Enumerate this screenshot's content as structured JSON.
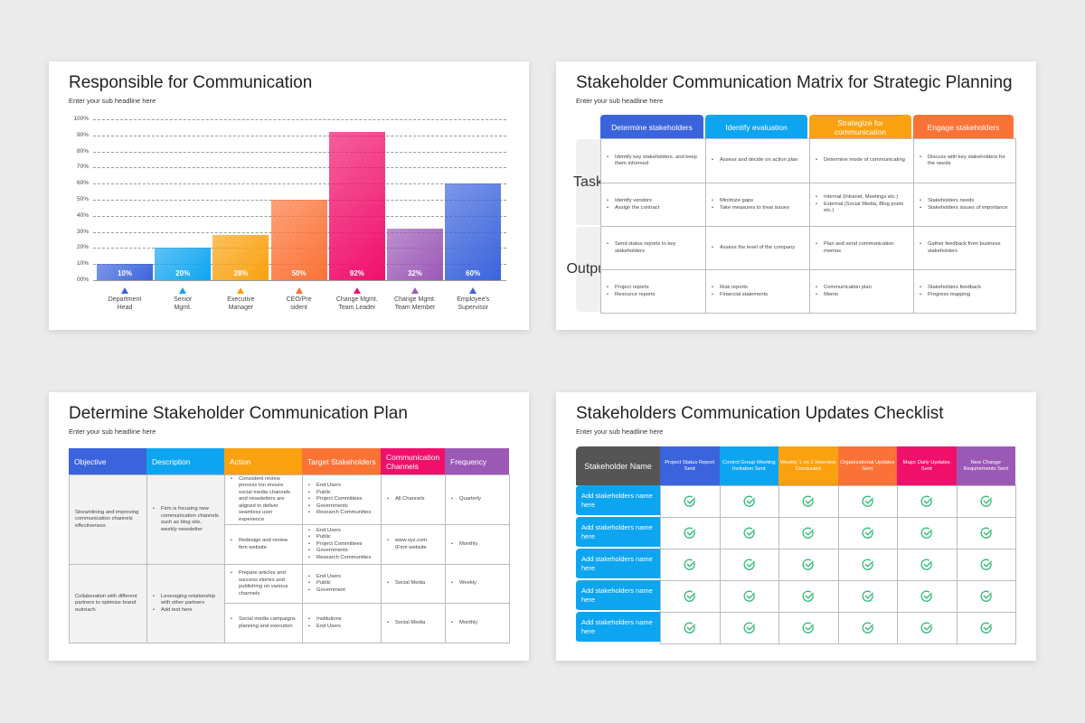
{
  "slide1": {
    "title": "Responsible for Communication",
    "subtitle": "Enter your sub headline here"
  },
  "slide2": {
    "title": "Stakeholder Communication Matrix for Strategic Planning",
    "subtitle": "Enter your sub headline here",
    "columns": [
      {
        "label": "Determine stakeholders",
        "color": "#3b64dc"
      },
      {
        "label": "Identify evaluation",
        "color": "#0ea5f0"
      },
      {
        "label": "Strategize for communication",
        "color": "#f9a10f"
      },
      {
        "label": "Engage stakeholders",
        "color": "#fb7236"
      }
    ],
    "row_groups": [
      "Task",
      "Output"
    ],
    "rows": [
      [
        [
          "Identify key stakeholders. and keep them informed"
        ],
        [
          "Assess and decide on action plan"
        ],
        [
          "Determine mode of communicating"
        ],
        [
          "Discuss with key stakeholders for the needs"
        ]
      ],
      [
        [
          "Identify vendors",
          "Assign the contract"
        ],
        [
          "Minimize gaps",
          "Take measures to treat issues"
        ],
        [
          "Internal (Intranet, Meetings etc.)",
          "External (Social Media, Blog posts etc.)"
        ],
        [
          "Stakeholders needs",
          "Stakeholders issues of importance"
        ]
      ],
      [
        [
          "Send status reports to key stakeholders"
        ],
        [
          "Assess the level of the company"
        ],
        [
          "Plan and send communication memos"
        ],
        [
          "Gather feedback from business stakeholders"
        ]
      ],
      [
        [
          "Project reports",
          "Resource reports"
        ],
        [
          "Risk reports",
          "Financial statements"
        ],
        [
          "Communication plan",
          "Memo"
        ],
        [
          "Stakeholders feedback",
          "Progress mapping"
        ]
      ]
    ]
  },
  "slide3": {
    "title": "Determine Stakeholder Communication Plan",
    "subtitle": "Enter your sub headline here",
    "columns": [
      {
        "label": "Objective",
        "color": "#3b64dc"
      },
      {
        "label": "Description",
        "color": "#0ea5f0"
      },
      {
        "label": "Action",
        "color": "#f9a10f"
      },
      {
        "label": "Target Stakeholders",
        "color": "#fb7236"
      },
      {
        "label": "Communication Channels",
        "color": "#f0106b"
      },
      {
        "label": "Frequency",
        "color": "#9b59b6"
      }
    ],
    "objectives": [
      {
        "objective": "Streamlining and improving communication channels effectiveness",
        "description": [
          "Firm is focusing new communication channels such as blog site, weekly newsletter"
        ]
      },
      {
        "objective": "Collaboration with different partners to optimize brand outreach",
        "description": [
          "Leveraging relationship with other partners",
          "Add text here"
        ]
      }
    ],
    "rows": [
      {
        "action": [
          "Consistent review process ton ensure social media channels and newsletters are aligned to deliver seamless user experience"
        ],
        "targets": [
          "End Users",
          "Public",
          "Project Committees",
          "Governments",
          "Research Communities"
        ],
        "channels": [
          "All Channels"
        ],
        "frequency": [
          "Quarterly"
        ]
      },
      {
        "action": [
          "Redesign and review firm website"
        ],
        "targets": [
          "End Users",
          "Public",
          "Project Committees",
          "Governments",
          "Research Communities"
        ],
        "channels": [
          "www.xyz.com (Firm website"
        ],
        "frequency": [
          "Monthly"
        ]
      },
      {
        "action": [
          "Prepare articles and success stories and publishing on various channels"
        ],
        "targets": [
          "End Users",
          "Public",
          "Government"
        ],
        "channels": [
          "Social Media"
        ],
        "frequency": [
          "Weekly"
        ]
      },
      {
        "action": [
          "Social media campaigns planning and execution"
        ],
        "targets": [
          "Institutions",
          "End Users"
        ],
        "channels": [
          "Social Media"
        ],
        "frequency": [
          "Monthly"
        ]
      }
    ]
  },
  "slide4": {
    "title": "Stakeholders Communication Updates Checklist",
    "subtitle": "Enter your sub headline here",
    "name_header": "Stakeholder Name",
    "columns": [
      {
        "label": "Project Status Report Sent",
        "color": "#3b64dc"
      },
      {
        "label": "Control Group Meeting Invitation Sent",
        "color": "#0ea5f0"
      },
      {
        "label": "Weekly 1 on 1 Interview Conducted",
        "color": "#f9a10f"
      },
      {
        "label": "Organizational Updates Sent",
        "color": "#fb7236"
      },
      {
        "label": "Major Daily Updates Sent",
        "color": "#f0106b"
      },
      {
        "label": "New Change Requirements Sent",
        "color": "#9b59b6"
      }
    ],
    "rows": [
      "Add stakeholders name here",
      "Add stakeholders name here",
      "Add stakeholders name here",
      "Add stakeholders name here",
      "Add stakeholders name here"
    ],
    "check_icon": "check-circle-icon",
    "check_color": "#2eb872"
  },
  "chart_data": {
    "type": "bar",
    "title": "Responsible for Communication",
    "categories": [
      "Department Head",
      "Senior Mgmt.",
      "Executive Manager",
      "CEO/Pre sident",
      "Change Mgmt. Team Leader",
      "Change Mgmt. Team Member",
      "Employee's Supervisor"
    ],
    "category_lines": [
      [
        "Department",
        "Head"
      ],
      [
        "Senior",
        "Mgmt."
      ],
      [
        "Executive",
        "Manager"
      ],
      [
        "CEO/Pre",
        "sident"
      ],
      [
        "Change Mgmt.",
        "Team Leader"
      ],
      [
        "Change Mgmt.",
        "Team Member"
      ],
      [
        "Employee's",
        "Supervisor"
      ]
    ],
    "values": [
      10,
      20,
      28,
      50,
      92,
      32,
      60
    ],
    "data_labels": [
      "10%",
      "20%",
      "28%",
      "50%",
      "92%",
      "32%",
      "60%"
    ],
    "colors": [
      "#3b64dc",
      "#0ea5f0",
      "#f9a10f",
      "#fb7236",
      "#f0106b",
      "#9b59b6",
      "#3b64dc"
    ],
    "yticks": [
      "00%",
      "10%",
      "20%",
      "30%",
      "40%",
      "50%",
      "60%",
      "70%",
      "80%",
      "90%",
      "100%"
    ],
    "ylim": [
      0,
      100
    ],
    "grid": true,
    "xlabel": "",
    "ylabel": ""
  }
}
